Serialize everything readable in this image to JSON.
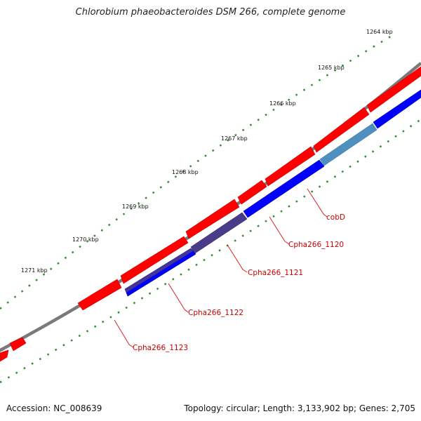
{
  "title": "Chlorobium phaeobacteroides DSM 266, complete genome",
  "footer": {
    "accession": "Accession: NC_008639",
    "summary": "Topology: circular; Length: 3,133,902 bp; Genes: 2,705"
  },
  "kbp_labels": [
    "1264 kbp",
    "1265 kbp",
    "1266 kbp",
    "1267 kbp",
    "1268 kbp",
    "1269 kbp",
    "1270 kbp",
    "1271 kbp"
  ],
  "gene_labels": [
    "cobD",
    "Cpha266_1120",
    "Cpha266_1121",
    "Cpha266_1122",
    "Cpha266_1123"
  ],
  "colors": {
    "backbone": "#808080",
    "forward_gene": "#ff0000",
    "reverse_gene": "#0000ff",
    "highlight_a": "#4f8fc0",
    "highlight_b": "#4a3a8a",
    "tick": "#2e8b2e",
    "label_red": "#cc0000"
  }
}
